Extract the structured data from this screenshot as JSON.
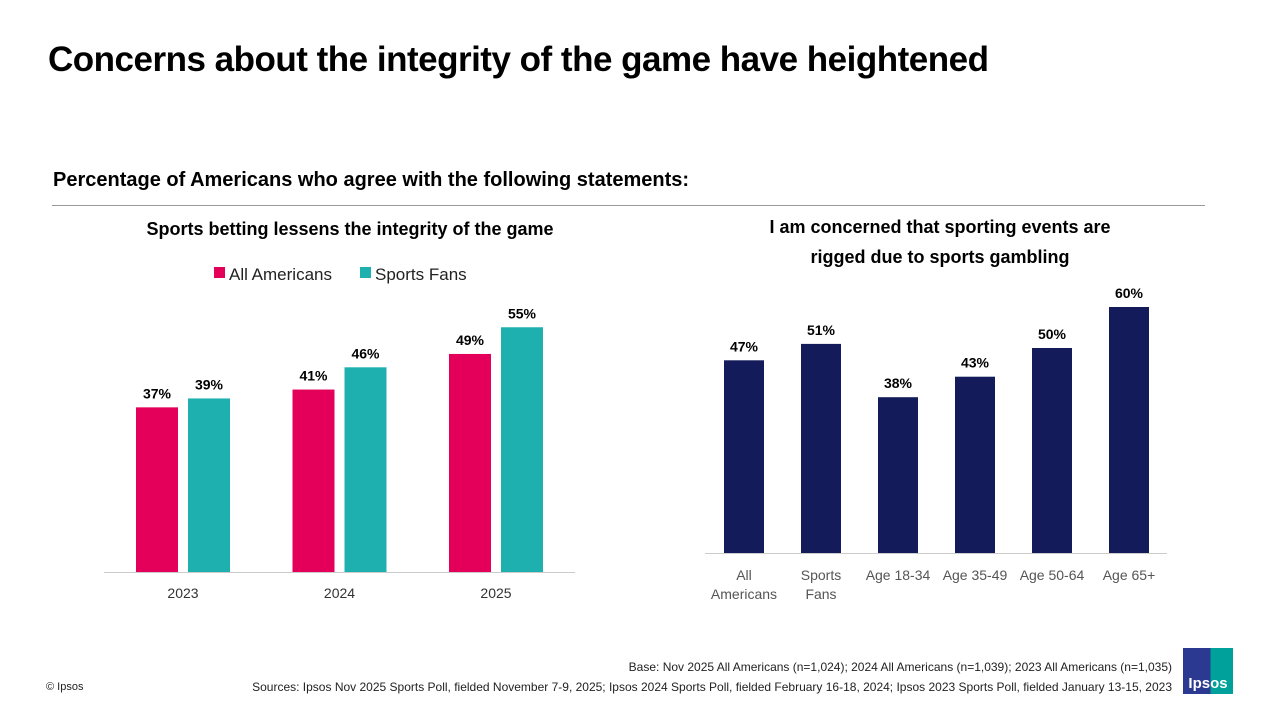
{
  "title": "Concerns about the integrity of the game have heightened",
  "subtitle": "Percentage of Americans who agree with the following statements:",
  "colors": {
    "all_americans": "#E4005A",
    "sports_fans": "#1DB0AF",
    "navy": "#131B5A"
  },
  "chart_data": [
    {
      "type": "bar",
      "title": "Sports betting lessens the integrity of the game",
      "categories": [
        "2023",
        "2024",
        "2025"
      ],
      "series": [
        {
          "name": "All Americans",
          "values": [
            37,
            41,
            49
          ],
          "labels": [
            "37%",
            "41%",
            "49%"
          ]
        },
        {
          "name": "Sports Fans",
          "values": [
            39,
            46,
            55
          ],
          "labels": [
            "39%",
            "46%",
            "55%"
          ]
        }
      ],
      "legend": "top",
      "unit": "%",
      "grid": false
    },
    {
      "type": "bar",
      "title_lines": [
        "I am concerned that sporting events are",
        "rigged due to sports gambling"
      ],
      "categories": [
        [
          "All",
          "Americans"
        ],
        [
          "Sports",
          "Fans"
        ],
        [
          "Age 18-34"
        ],
        [
          "Age 35-49"
        ],
        [
          "Age 50-64"
        ],
        [
          "Age 65+"
        ]
      ],
      "values": [
        47,
        51,
        38,
        43,
        50,
        60
      ],
      "labels": [
        "47%",
        "51%",
        "38%",
        "43%",
        "50%",
        "60%"
      ],
      "unit": "%",
      "grid": false
    }
  ],
  "footer": {
    "base": "Base: Nov 2025 All Americans (n=1,024); 2024 All Americans (n=1,039); 2023 All Americans (n=1,035)",
    "sources": "Sources: Ipsos Nov 2025 Sports Poll, fielded November 7-9, 2025; Ipsos 2024 Sports Poll, fielded February 16-18, 2024; Ipsos 2023 Sports Poll, fielded January 13-15, 2023",
    "copyright": "© Ipsos",
    "logo": "Ipsos"
  }
}
